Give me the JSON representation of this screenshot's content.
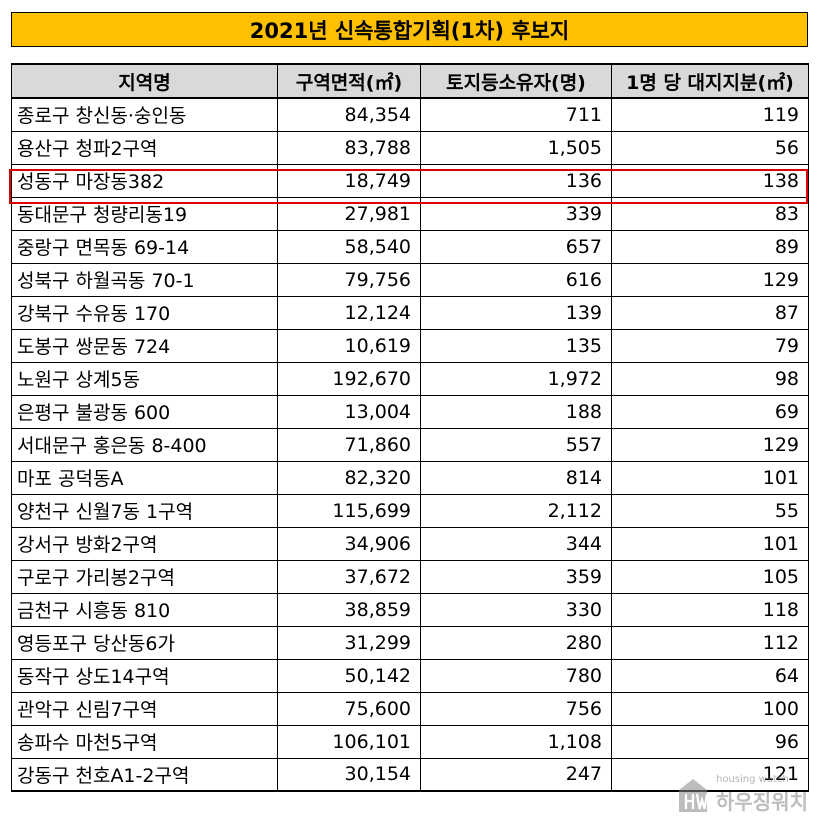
{
  "title": "2021년 신속통합기획(1차) 후보지",
  "headers": [
    "지역명",
    "구역면적(㎡)",
    "토지등소유자(명)",
    "1명 당 대지지분(㎡)"
  ],
  "rows": [
    [
      "종로구 창신동·숭인동",
      "84,354",
      "711",
      "119"
    ],
    [
      "용산구 청파2구역",
      "83,788",
      "1,505",
      "56"
    ],
    [
      "성동구 마장동382",
      "18,749",
      "136",
      "138"
    ],
    [
      "동대문구 청량리동19",
      "27,981",
      "339",
      "83"
    ],
    [
      "중랑구 면목동 69-14",
      "58,540",
      "657",
      "89"
    ],
    [
      "성북구 하월곡동 70-1",
      "79,756",
      "616",
      "129"
    ],
    [
      "강북구 수유동 170",
      "12,124",
      "139",
      "87"
    ],
    [
      "도봉구 쌍문동 724",
      "10,619",
      "135",
      "79"
    ],
    [
      "노원구 상계5동",
      "192,670",
      "1,972",
      "98"
    ],
    [
      "은평구 불광동 600",
      "13,004",
      "188",
      "69"
    ],
    [
      "서대문구 홍은동 8-400",
      "71,860",
      "557",
      "129"
    ],
    [
      "마포 공덕동A",
      "82,320",
      "814",
      "101"
    ],
    [
      "양천구 신월7동 1구역",
      "115,699",
      "2,112",
      "55"
    ],
    [
      "강서구 방화2구역",
      "34,906",
      "344",
      "101"
    ],
    [
      "구로구 가리봉2구역",
      "37,672",
      "359",
      "105"
    ],
    [
      "금천구 시흥동 810",
      "38,859",
      "330",
      "118"
    ],
    [
      "영등포구 당산동6가",
      "31,299",
      "280",
      "112"
    ],
    [
      "동작구 상도14구역",
      "50,142",
      "780",
      "64"
    ],
    [
      "관악구 신림7구역",
      "75,600",
      "756",
      "100"
    ],
    [
      "송파수 마천5구역",
      "106,101",
      "1,108",
      "96"
    ],
    [
      "강동구 천호A1-2구역",
      "30,154",
      "247",
      "121"
    ]
  ],
  "highlighted_row_index": 2,
  "watermark": {
    "top_text": "housing watch",
    "main_text": "하우징워치"
  },
  "colors": {
    "title_background": "#ffc000",
    "header_background": "#d9d9d9",
    "highlight_border": "#e00000"
  }
}
